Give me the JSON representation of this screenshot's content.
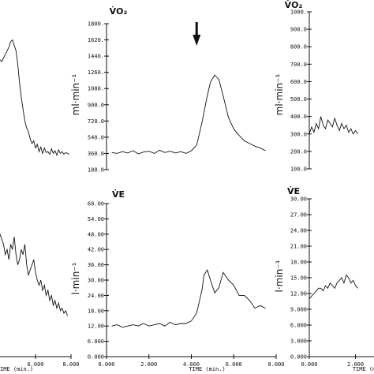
{
  "chart_data": [
    {
      "id": "left-vo2",
      "type": "line",
      "x_unit": "min",
      "ylim": [
        180,
        1800
      ],
      "title": "",
      "ylabel": "",
      "x": [
        4.0,
        4.1,
        4.2,
        4.3,
        4.4,
        4.5,
        4.6,
        4.7,
        4.8,
        4.9,
        5.0,
        5.1,
        5.2,
        5.3,
        5.4,
        5.5,
        5.6,
        5.7,
        5.8,
        5.9,
        6.0,
        6.1,
        6.2,
        6.3,
        6.4,
        6.5,
        6.6,
        6.7,
        6.8,
        6.9,
        7.0,
        7.1,
        7.2,
        7.3,
        7.4,
        7.5,
        7.6,
        7.7,
        7.8,
        7.9
      ],
      "series": [
        {
          "values": [
            1400,
            1380,
            1420,
            1460,
            1500,
            1540,
            1600,
            1620,
            1560,
            1500,
            1350,
            1150,
            980,
            850,
            720,
            640,
            600,
            520,
            470,
            500,
            420,
            460,
            380,
            430,
            360,
            420,
            370,
            380,
            350,
            410,
            360,
            390,
            340,
            400,
            360,
            380,
            350,
            370,
            360,
            350
          ]
        }
      ]
    },
    {
      "id": "center-vo2",
      "type": "line",
      "xlim": [
        0,
        8
      ],
      "ylim": [
        180,
        1800
      ],
      "title": "V̇O₂",
      "ylabel": "ml·min⁻¹",
      "yticks": [
        "1800.",
        "1620.",
        "1440.",
        "1260.",
        "1080.",
        "900.0",
        "720.0",
        "540.0",
        "360.0",
        "180.0"
      ],
      "x": [
        0.25,
        0.5,
        0.75,
        1.0,
        1.25,
        1.5,
        1.75,
        2.0,
        2.25,
        2.5,
        2.75,
        3.0,
        3.25,
        3.5,
        3.75,
        4.0,
        4.25,
        4.5,
        4.75,
        4.9,
        5.1,
        5.3,
        5.5,
        5.75,
        6.0,
        6.25,
        6.5,
        6.75,
        7.0,
        7.25,
        7.5
      ],
      "series": [
        {
          "values": [
            370,
            360,
            380,
            365,
            390,
            355,
            375,
            385,
            360,
            395,
            370,
            385,
            365,
            380,
            360,
            390,
            450,
            700,
            1000,
            1150,
            1230,
            1180,
            1000,
            760,
            630,
            560,
            500,
            470,
            440,
            420,
            390
          ]
        }
      ],
      "annotations": [
        {
          "type": "arrow",
          "x": 4.25
        }
      ]
    },
    {
      "id": "right-vo2",
      "type": "line",
      "ylim": [
        100,
        1000
      ],
      "title": "V̇O₂",
      "ylabel": "ml·min⁻¹",
      "yticks": [
        "1000.",
        "900.0",
        "800.0",
        "700.0",
        "600.0",
        "500.0",
        "400.0",
        "300.0",
        "200.0",
        "100.0"
      ],
      "x": [
        0,
        0.1,
        0.2,
        0.3,
        0.4,
        0.5,
        0.6,
        0.7,
        0.8,
        0.9,
        1.0,
        1.1,
        1.2,
        1.3,
        1.4,
        1.5,
        1.6,
        1.7,
        1.8,
        1.9,
        2.0,
        2.1
      ],
      "series": [
        {
          "values": [
            300,
            340,
            310,
            360,
            330,
            400,
            350,
            330,
            380,
            360,
            340,
            390,
            350,
            320,
            360,
            330,
            350,
            310,
            330,
            300,
            320,
            300
          ]
        }
      ]
    },
    {
      "id": "left-ve",
      "type": "line",
      "xlim": [
        4,
        8
      ],
      "ylim": [
        0,
        60
      ],
      "title": "",
      "ylabel": "",
      "xtick_values": [
        6,
        8
      ],
      "xticks": [
        "6.000",
        "8.000"
      ],
      "xlabel_visible": "IME (min.)",
      "x": [
        4.0,
        4.1,
        4.2,
        4.3,
        4.4,
        4.5,
        4.6,
        4.7,
        4.8,
        4.9,
        5.0,
        5.1,
        5.2,
        5.3,
        5.4,
        5.5,
        5.6,
        5.7,
        5.8,
        5.9,
        6.0,
        6.1,
        6.2,
        6.3,
        6.4,
        6.5,
        6.6,
        6.7,
        6.8,
        6.9,
        7.0,
        7.1,
        7.2,
        7.3,
        7.4,
        7.5,
        7.6,
        7.7,
        7.8
      ],
      "series": [
        {
          "values": [
            48,
            46,
            44,
            40,
            42,
            38,
            44,
            42,
            47,
            40,
            36,
            38,
            42,
            40,
            44,
            36,
            32,
            34,
            36,
            38,
            33,
            30,
            28,
            30,
            26,
            28,
            24,
            26,
            22,
            24,
            20,
            22,
            19,
            21,
            18,
            19,
            17,
            18,
            16
          ]
        }
      ]
    },
    {
      "id": "center-ve",
      "type": "line",
      "xlim": [
        0,
        8
      ],
      "ylim": [
        0,
        60
      ],
      "title": "V̇E",
      "ylabel": "l·min⁻¹",
      "xlabel": "TIME (min.)",
      "yticks": [
        "60.00",
        "54.00",
        "48.00",
        "42.00",
        "36.00",
        "30.00",
        "24.00",
        "18.00",
        "12.00",
        "6.000",
        "0.000"
      ],
      "xtick_values": [
        0,
        2,
        4,
        6,
        8
      ],
      "xticks": [
        "0.000",
        "2.000",
        "4.000",
        "6.000",
        "8.000"
      ],
      "x": [
        0.25,
        0.5,
        0.75,
        1.0,
        1.25,
        1.5,
        1.75,
        2.0,
        2.25,
        2.5,
        2.75,
        3.0,
        3.25,
        3.5,
        3.75,
        4.0,
        4.25,
        4.5,
        4.6,
        4.75,
        4.9,
        5.1,
        5.3,
        5.5,
        5.75,
        6.0,
        6.25,
        6.5,
        6.75,
        7.0,
        7.25,
        7.5
      ],
      "series": [
        {
          "values": [
            12,
            12.5,
            11.5,
            12,
            12.5,
            12,
            13,
            12,
            12.5,
            13,
            12,
            13.5,
            12.5,
            13,
            13,
            14,
            17,
            26,
            32,
            34,
            30,
            25,
            27,
            33,
            30,
            28,
            24,
            24,
            22,
            19,
            20,
            19
          ]
        }
      ]
    },
    {
      "id": "right-ve",
      "type": "line",
      "ylim": [
        0,
        30
      ],
      "title": "V̇E",
      "ylabel": "l·min⁻¹",
      "xlabel": "TIME (min.)",
      "yticks": [
        "30.00",
        "27.00",
        "24.00",
        "21.00",
        "18.00",
        "15.00",
        "12.00",
        "9.000",
        "6.000",
        "3.000",
        "0.000"
      ],
      "xtick_values": [
        0,
        2
      ],
      "xticks": [
        "0.000",
        "2.000"
      ],
      "x": [
        0,
        0.1,
        0.2,
        0.3,
        0.4,
        0.5,
        0.6,
        0.7,
        0.8,
        0.9,
        1.0,
        1.1,
        1.2,
        1.3,
        1.4,
        1.5,
        1.6,
        1.7,
        1.8,
        1.9,
        2.0,
        2.1
      ],
      "series": [
        {
          "values": [
            11,
            11.5,
            12,
            12.5,
            13,
            13,
            12.5,
            13.5,
            13,
            14,
            13.5,
            13,
            14,
            14.5,
            15,
            14,
            15.5,
            15,
            14,
            14.5,
            13.5,
            13
          ]
        }
      ]
    }
  ]
}
